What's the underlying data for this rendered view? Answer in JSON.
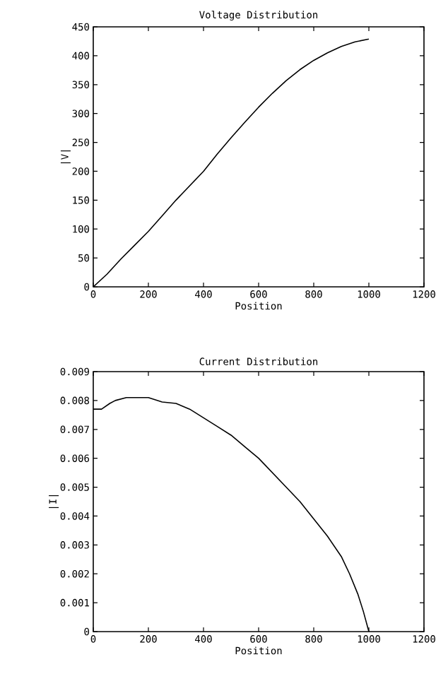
{
  "chart_data": [
    {
      "type": "line",
      "title": "Voltage Distribution",
      "xlabel": "Position",
      "ylabel": "|V|",
      "color": "#000000",
      "x": [
        0,
        50,
        100,
        150,
        200,
        250,
        300,
        350,
        400,
        450,
        500,
        550,
        600,
        650,
        700,
        750,
        800,
        850,
        900,
        950,
        1000
      ],
      "values": [
        0,
        22,
        48,
        72,
        96,
        123,
        150,
        175,
        200,
        230,
        258,
        285,
        311,
        335,
        357,
        376,
        392,
        405,
        416,
        424,
        429
      ],
      "xlim": [
        0,
        1200
      ],
      "ylim": [
        0,
        450
      ],
      "xticks": [
        0,
        200,
        400,
        600,
        800,
        1000,
        1200
      ],
      "yticks": [
        0,
        50,
        100,
        150,
        200,
        250,
        300,
        350,
        400,
        450
      ]
    },
    {
      "type": "line",
      "title": "Current Distribution",
      "xlabel": "Position",
      "ylabel": "|I|",
      "color": "#000000",
      "x": [
        0,
        30,
        60,
        80,
        120,
        150,
        200,
        250,
        300,
        350,
        400,
        450,
        500,
        550,
        600,
        650,
        700,
        750,
        800,
        850,
        900,
        930,
        960,
        980,
        1000
      ],
      "values": [
        0.0077,
        0.0077,
        0.0079,
        0.008,
        0.0081,
        0.0081,
        0.0081,
        0.00795,
        0.0079,
        0.0077,
        0.0074,
        0.0071,
        0.0068,
        0.0064,
        0.006,
        0.0055,
        0.005,
        0.0045,
        0.0039,
        0.0033,
        0.0026,
        0.002,
        0.0013,
        0.0007,
        0
      ],
      "xlim": [
        0,
        1200
      ],
      "ylim": [
        0,
        0.009
      ],
      "xticks": [
        0,
        200,
        400,
        600,
        800,
        1000,
        1200
      ],
      "yticks": [
        0,
        0.001,
        0.002,
        0.003,
        0.004,
        0.005,
        0.006,
        0.007,
        0.008,
        0.009
      ]
    }
  ]
}
